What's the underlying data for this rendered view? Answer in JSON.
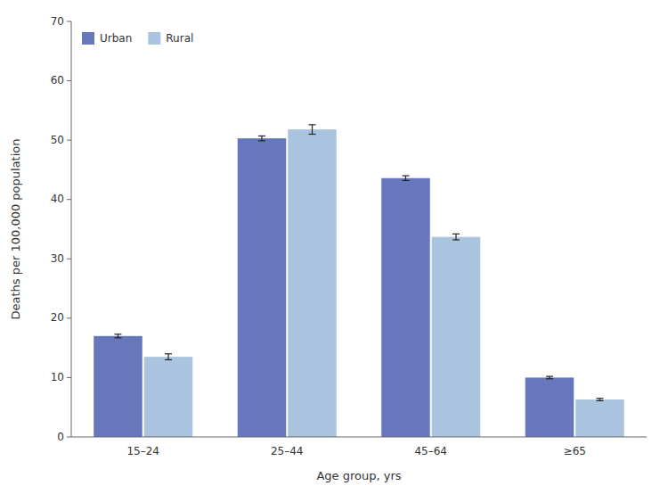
{
  "chart_data": {
    "type": "bar",
    "xlabel": "Age group, yrs",
    "ylabel": "Deaths per 100,000 population",
    "categories": [
      "15–24",
      "25–44",
      "45–64",
      "≥65"
    ],
    "series": [
      {
        "name": "Urban",
        "color": "#6677bb",
        "values": [
          17.0,
          50.3,
          43.6,
          10.0
        ],
        "errors": [
          0.3,
          0.4,
          0.4,
          0.2
        ]
      },
      {
        "name": "Rural",
        "color": "#aac4e0",
        "values": [
          13.5,
          51.8,
          33.7,
          6.3
        ],
        "errors": [
          0.5,
          0.8,
          0.5,
          0.2
        ]
      }
    ],
    "ylim": [
      0,
      70
    ],
    "yticks": [
      0,
      10,
      20,
      30,
      40,
      50,
      60,
      70
    ],
    "grid": false,
    "legend": "upper left"
  }
}
